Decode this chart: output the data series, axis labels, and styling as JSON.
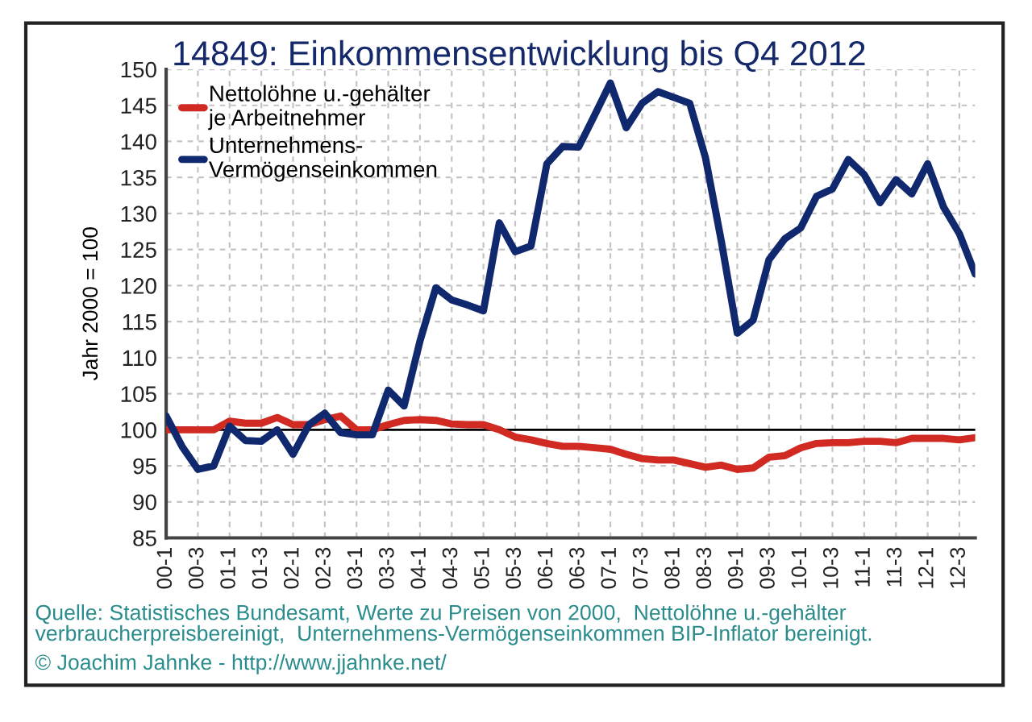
{
  "chart_data": {
    "type": "line",
    "title": "14849: Einkommensentwicklung bis Q4 2012",
    "ylabel": "Jahr 2000 = 100",
    "annotations": [
      "Quelle: Statistisches Bundesamt, Werte zu Preisen von 2000,  Nettolöhne u.-gehälter\nverbraucherpreisbereinigt,  Unternehmens-Vermögenseinkommen BIP-Inflator bereinigt.",
      "© Joachim Jahnke - http://www.jjahnke.net/"
    ],
    "categories": [
      "00-1",
      null,
      "00-3",
      null,
      "01-1",
      null,
      "01-3",
      null,
      "02-1",
      null,
      "02-3",
      null,
      "03-1",
      null,
      "03-3",
      null,
      "04-1",
      null,
      "04-3",
      null,
      "05-1",
      null,
      "05-3",
      null,
      "06-1",
      null,
      "06-3",
      null,
      "07-1",
      null,
      "07-3",
      null,
      "08-1",
      null,
      "08-3",
      null,
      "09-1",
      null,
      "09-3",
      null,
      "10-1",
      null,
      "10-3",
      null,
      "11-1",
      null,
      "11-3",
      null,
      "12-1",
      null,
      "12-3",
      null
    ],
    "series": [
      {
        "name": "Nettolöhne u.-gehälter\nje Arbeitnehmer",
        "color": "#d02a22",
        "values": [
          100,
          100,
          100,
          100,
          101.2,
          100.9,
          100.9,
          101.7,
          100.7,
          100.7,
          101.4,
          101.9,
          100,
          100,
          100.7,
          101.3,
          101.4,
          101.3,
          100.8,
          100.7,
          100.7,
          100,
          99,
          98.6,
          98.1,
          97.7,
          97.7,
          97.5,
          97.3,
          96.6,
          96,
          95.8,
          95.8,
          95.3,
          94.8,
          95.1,
          94.5,
          94.7,
          96.2,
          96.4,
          97.5,
          98.1,
          98.2,
          98.2,
          98.4,
          98.4,
          98.2,
          98.8,
          98.8,
          98.8,
          98.6,
          98.9
        ]
      },
      {
        "name": "Unternehmens-\nVermögenseinkommen",
        "color": "#10286e",
        "values": [
          101.9,
          97.7,
          94.5,
          95,
          100.5,
          98.5,
          98.4,
          100,
          96.6,
          100.7,
          102.3,
          99.6,
          99.3,
          99.3,
          105.5,
          103.3,
          112.3,
          119.7,
          118,
          117.3,
          116.5,
          128.7,
          124.7,
          125.5,
          136.9,
          139.3,
          139.2,
          143.6,
          148.1,
          141.9,
          145.3,
          146.9,
          146.1,
          145.3,
          137.7,
          126.1,
          113.4,
          115.2,
          123.6,
          126.5,
          128,
          132.4,
          133.4,
          137.5,
          135.4,
          131.5,
          134.7,
          132.7,
          136.9,
          130.9,
          127.2,
          121.6
        ]
      }
    ],
    "ylim": [
      85,
      150
    ],
    "yticks": [
      85,
      90,
      95,
      100,
      105,
      110,
      115,
      120,
      125,
      130,
      135,
      140,
      145,
      150
    ],
    "grid": true,
    "legend": "top left",
    "ref_lines": [
      {
        "axis": "y",
        "value": 100,
        "color": "#000000"
      }
    ]
  }
}
